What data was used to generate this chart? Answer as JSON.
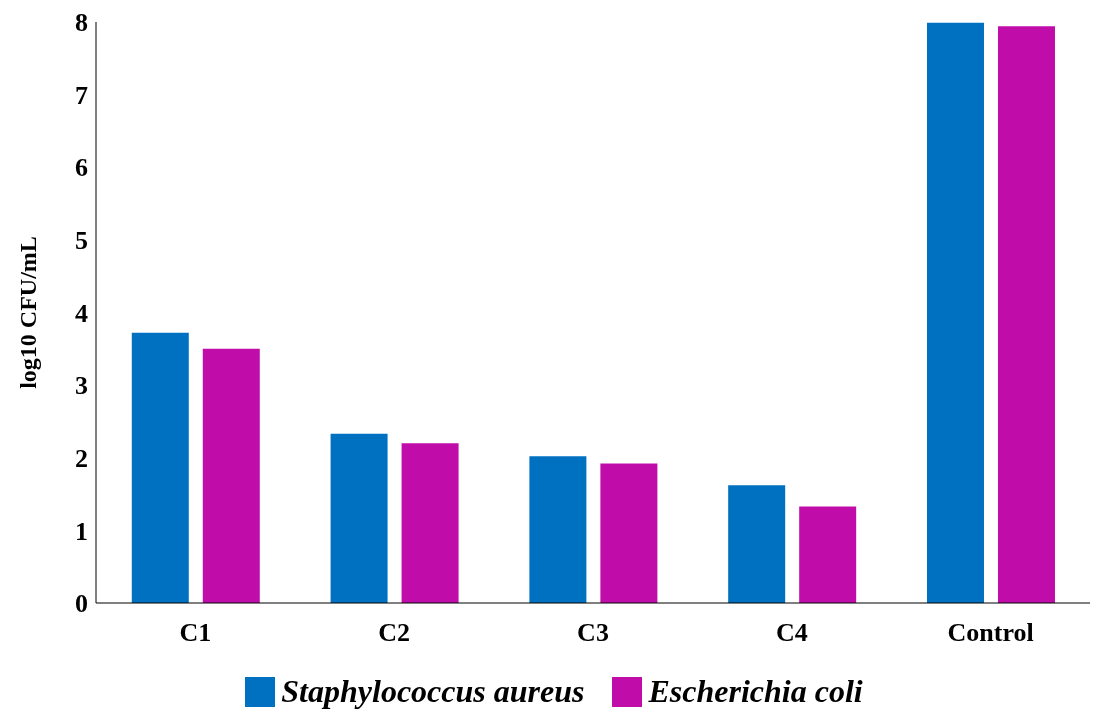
{
  "chart_data": {
    "type": "bar",
    "ylabel": "log10 CFU/mL",
    "categories": [
      "C1",
      "C2",
      "C3",
      "C4",
      "Control"
    ],
    "series": [
      {
        "name": "Staphylococcus aureus",
        "color": "#0070c0",
        "values": [
          3.72,
          2.33,
          2.02,
          1.62,
          7.99
        ]
      },
      {
        "name": "Escherichia coli",
        "color": "#c00ca8",
        "values": [
          3.5,
          2.2,
          1.92,
          1.33,
          7.94
        ]
      }
    ],
    "ylim": [
      0,
      8
    ],
    "yticks": [
      0,
      1,
      2,
      3,
      4,
      5,
      6,
      7,
      8
    ],
    "grid": false,
    "legend": "bottom"
  }
}
